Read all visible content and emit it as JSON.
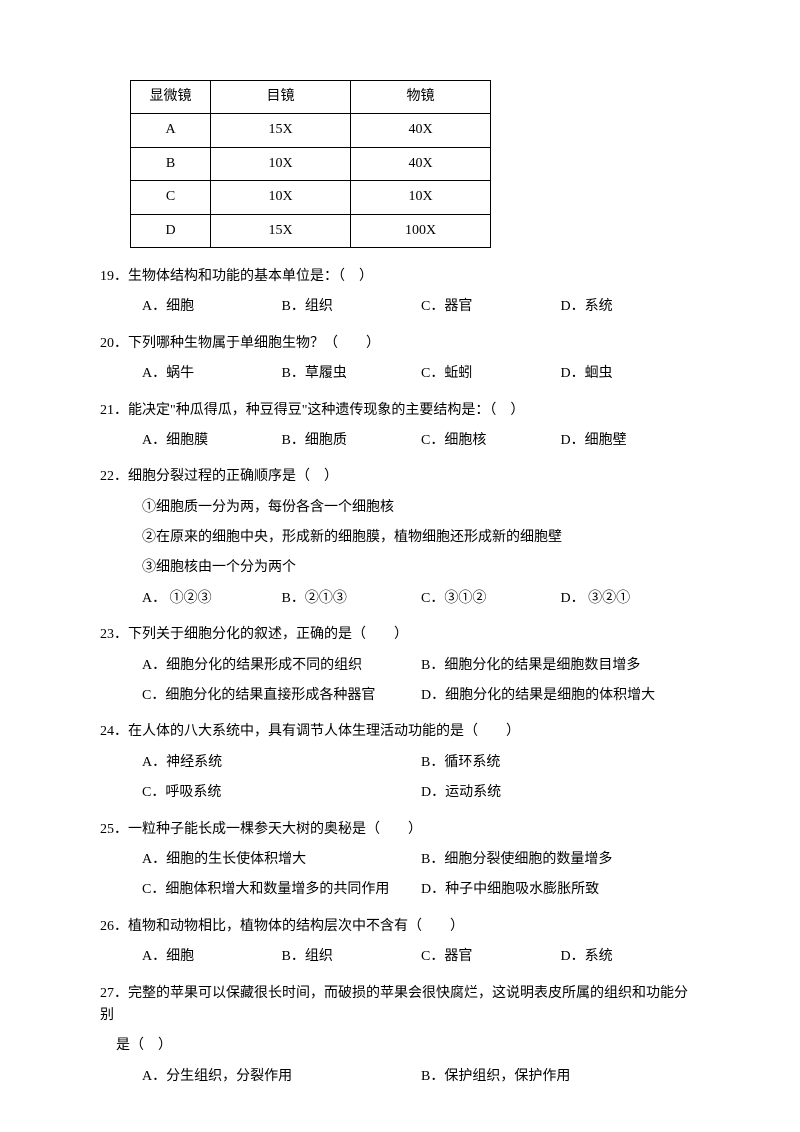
{
  "table": {
    "headers": [
      "显微镜",
      "目镜",
      "物镜"
    ],
    "rows": [
      [
        "A",
        "15X",
        "40X"
      ],
      [
        "B",
        "10X",
        "40X"
      ],
      [
        "C",
        "10X",
        "10X"
      ],
      [
        "D",
        "15X",
        "100X"
      ]
    ]
  },
  "questions": {
    "q19": {
      "num": "19．",
      "stem": "生物体结构和功能的基本单位是：（　）",
      "a": "A．细胞",
      "b": "B．组织",
      "c": "C．器官",
      "d": "D．系统"
    },
    "q20": {
      "num": "20．",
      "stem": "下列哪种生物属于单细胞生物？（　　）",
      "a": "A．蜗牛",
      "b": "B．草履虫",
      "c": "C．蚯蚓",
      "d": "D．蛔虫"
    },
    "q21": {
      "num": "21．",
      "stem": "能决定\"种瓜得瓜，种豆得豆\"这种遗传现象的主要结构是：（　）",
      "a": "A．细胞膜",
      "b": "B．细胞质",
      "c": "C．细胞核",
      "d": "D．细胞壁"
    },
    "q22": {
      "num": "22．",
      "stem": "细胞分裂过程的正确顺序是（　）",
      "line1": "①细胞质一分为两，每份各含一个细胞核",
      "line2": "②在原来的细胞中央，形成新的细胞膜，植物细胞还形成新的细胞壁",
      "line3": "③细胞核由一个分为两个",
      "a": "A．  ①②③",
      "b": "B．②①③",
      "c": "C．③①②",
      "d": "D．  ③②①"
    },
    "q23": {
      "num": "23．",
      "stem": "下列关于细胞分化的叙述，正确的是（　　）",
      "a": "A．细胞分化的结果形成不同的组织",
      "b": "B．细胞分化的结果是细胞数目增多",
      "c": "C．细胞分化的结果直接形成各种器官",
      "d": "D．细胞分化的结果是细胞的体积增大"
    },
    "q24": {
      "num": "24．",
      "stem": "在人体的八大系统中，具有调节人体生理活动功能的是（　　）",
      "a": "A．神经系统",
      "b": "B．循环系统",
      "c": "C．呼吸系统",
      "d": "D．运动系统"
    },
    "q25": {
      "num": "25．",
      "stem": "一粒种子能长成一棵参天大树的奥秘是（　　）",
      "a": "A．细胞的生长使体积增大",
      "b": "B．细胞分裂使细胞的数量增多",
      "c": "C．细胞体积增大和数量增多的共同作用",
      "d": "D．种子中细胞吸水膨胀所致"
    },
    "q26": {
      "num": "26．",
      "stem": "植物和动物相比，植物体的结构层次中不含有（　　）",
      "a": "A．细胞",
      "b": "B．组织",
      "c": "C．器官",
      "d": "D．系统"
    },
    "q27": {
      "num": "27．",
      "stem": "完整的苹果可以保藏很长时间，而破损的苹果会很快腐烂，这说明表皮所属的组织和功能分别",
      "stem2": "是（　）",
      "a": "A．分生组织，分裂作用",
      "b": "B．保护组织，保护作用"
    }
  }
}
